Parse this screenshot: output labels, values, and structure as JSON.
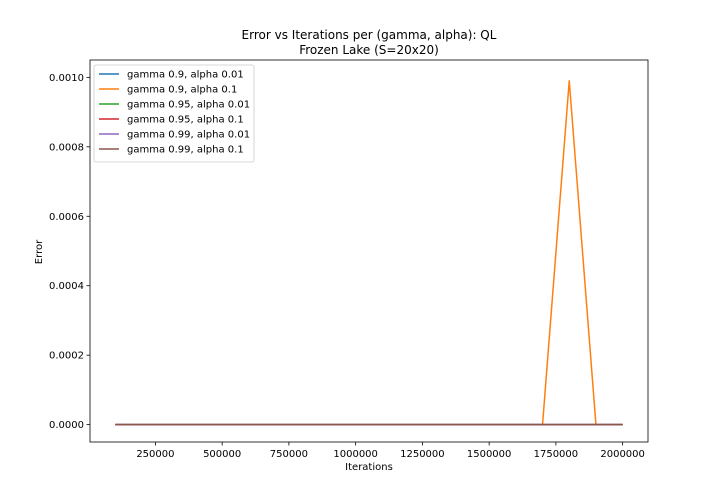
{
  "chart_data": {
    "type": "line",
    "title": "Error vs Iterations per (gamma, alpha): QL",
    "subtitle": "Frozen Lake (S=20x20)",
    "xlabel": "Iterations",
    "ylabel": "Error",
    "xlim": [
      5000,
      2095000
    ],
    "ylim": [
      -5e-05,
      0.00105
    ],
    "xticks": [
      250000,
      500000,
      750000,
      1000000,
      1250000,
      1500000,
      1750000,
      2000000
    ],
    "yticks": [
      0.0,
      0.0002,
      0.0004,
      0.0006,
      0.0008,
      0.001
    ],
    "ytick_labels": [
      "0.0000",
      "0.0002",
      "0.0004",
      "0.0006",
      "0.0008",
      "0.0010"
    ],
    "grid": false,
    "legend_position": "top-left",
    "x": [
      100000,
      200000,
      300000,
      400000,
      500000,
      600000,
      700000,
      800000,
      900000,
      1000000,
      1100000,
      1200000,
      1300000,
      1400000,
      1500000,
      1600000,
      1700000,
      1800000,
      1900000,
      2000000
    ],
    "series": [
      {
        "name": "gamma 0.9, alpha 0.01",
        "color": "#1f77b4",
        "values": [
          0,
          0,
          0,
          0,
          0,
          0,
          0,
          0,
          0,
          0,
          0,
          0,
          0,
          0,
          0,
          0,
          0,
          0,
          0,
          0
        ]
      },
      {
        "name": "gamma 0.9, alpha 0.1",
        "color": "#ff7f0e",
        "values": [
          0,
          0,
          0,
          0,
          0,
          0,
          0,
          0,
          0,
          0,
          0,
          0,
          0,
          0,
          0,
          0,
          0,
          0.00099,
          0,
          0
        ]
      },
      {
        "name": "gamma 0.95, alpha 0.01",
        "color": "#2ca02c",
        "values": [
          0,
          0,
          0,
          0,
          0,
          0,
          0,
          0,
          0,
          0,
          0,
          0,
          0,
          0,
          0,
          0,
          0,
          0,
          0,
          0
        ]
      },
      {
        "name": "gamma 0.95, alpha 0.1",
        "color": "#d62728",
        "values": [
          0,
          0,
          0,
          0,
          0,
          0,
          0,
          0,
          0,
          0,
          0,
          0,
          0,
          0,
          0,
          0,
          0,
          0,
          0,
          0
        ]
      },
      {
        "name": "gamma 0.99, alpha 0.01",
        "color": "#9467bd",
        "values": [
          0,
          0,
          0,
          0,
          0,
          0,
          0,
          0,
          0,
          0,
          0,
          0,
          0,
          0,
          0,
          0,
          0,
          0,
          0,
          0
        ]
      },
      {
        "name": "gamma 0.99, alpha 0.1",
        "color": "#8c564b",
        "values": [
          0,
          0,
          0,
          0,
          0,
          0,
          0,
          0,
          0,
          0,
          0,
          0,
          0,
          0,
          0,
          0,
          0,
          0,
          0,
          0
        ]
      }
    ]
  }
}
